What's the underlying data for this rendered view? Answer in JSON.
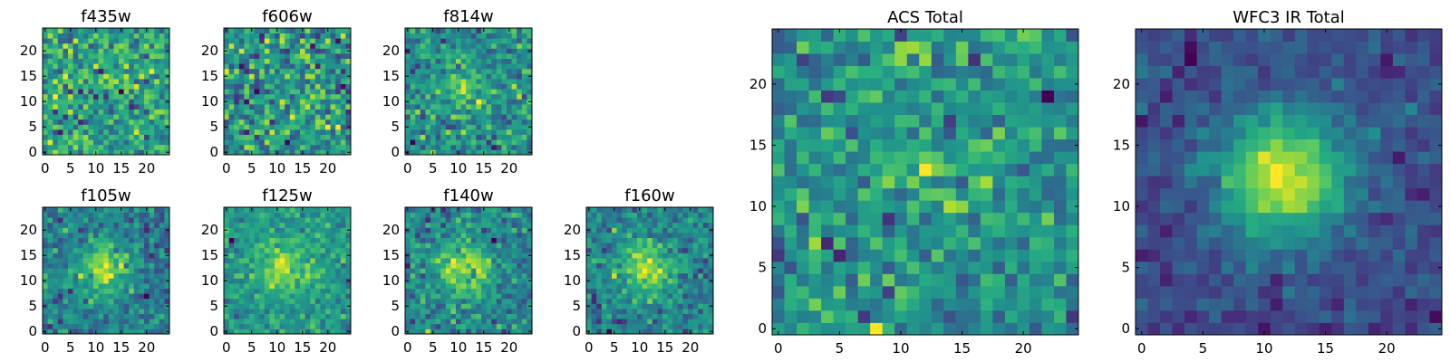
{
  "chart_data": [
    {
      "type": "heatmap",
      "title": "f435w",
      "xticks": [
        "0",
        "5",
        "10",
        "15",
        "20"
      ],
      "yticks": [
        "0",
        "5",
        "10",
        "15",
        "20"
      ],
      "xlim": [
        -0.5,
        24.5
      ],
      "ylim": [
        -0.5,
        24.5
      ],
      "grid": 25,
      "source_peak": 0.05,
      "noise_level": 1.0,
      "colormap": "viridis"
    },
    {
      "type": "heatmap",
      "title": "f606w",
      "xticks": [
        "0",
        "5",
        "10",
        "15",
        "20"
      ],
      "yticks": [
        "0",
        "5",
        "10",
        "15",
        "20"
      ],
      "xlim": [
        -0.5,
        24.5
      ],
      "ylim": [
        -0.5,
        24.5
      ],
      "grid": 25,
      "source_peak": 0.05,
      "noise_level": 1.0,
      "colormap": "viridis"
    },
    {
      "type": "heatmap",
      "title": "f814w",
      "xticks": [
        "0",
        "5",
        "10",
        "15",
        "20"
      ],
      "yticks": [
        "0",
        "5",
        "10",
        "15",
        "20"
      ],
      "xlim": [
        -0.5,
        24.5
      ],
      "ylim": [
        -0.5,
        24.5
      ],
      "grid": 25,
      "source_peak": 0.5,
      "noise_level": 0.8,
      "colormap": "viridis"
    },
    {
      "type": "heatmap",
      "title": "f105w",
      "xticks": [
        "0",
        "5",
        "10",
        "15",
        "20"
      ],
      "yticks": [
        "0",
        "5",
        "10",
        "15",
        "20"
      ],
      "xlim": [
        -0.5,
        24.5
      ],
      "ylim": [
        -0.5,
        24.5
      ],
      "grid": 25,
      "source_peak": 0.8,
      "noise_level": 0.6,
      "colormap": "viridis"
    },
    {
      "type": "heatmap",
      "title": "f125w",
      "xticks": [
        "0",
        "5",
        "10",
        "15",
        "20"
      ],
      "yticks": [
        "0",
        "5",
        "10",
        "15",
        "20"
      ],
      "xlim": [
        -0.5,
        24.5
      ],
      "ylim": [
        -0.5,
        24.5
      ],
      "grid": 25,
      "source_peak": 0.7,
      "noise_level": 0.6,
      "colormap": "viridis"
    },
    {
      "type": "heatmap",
      "title": "f140w",
      "xticks": [
        "0",
        "5",
        "10",
        "15",
        "20"
      ],
      "yticks": [
        "0",
        "5",
        "10",
        "15",
        "20"
      ],
      "xlim": [
        -0.5,
        24.5
      ],
      "ylim": [
        -0.5,
        24.5
      ],
      "grid": 25,
      "source_peak": 0.75,
      "noise_level": 0.6,
      "colormap": "viridis"
    },
    {
      "type": "heatmap",
      "title": "f160w",
      "xticks": [
        "0",
        "5",
        "10",
        "15",
        "20"
      ],
      "yticks": [
        "0",
        "5",
        "10",
        "15",
        "20"
      ],
      "xlim": [
        -0.5,
        24.5
      ],
      "ylim": [
        -0.5,
        24.5
      ],
      "grid": 25,
      "source_peak": 0.8,
      "noise_level": 0.6,
      "colormap": "viridis"
    },
    {
      "type": "heatmap",
      "title": "ACS Total",
      "xticks": [
        "0",
        "5",
        "10",
        "15",
        "20"
      ],
      "yticks": [
        "0",
        "5",
        "10",
        "15",
        "20"
      ],
      "xlim": [
        -0.5,
        24.5
      ],
      "ylim": [
        -0.5,
        24.5
      ],
      "grid": 25,
      "source_peak": 0.15,
      "noise_level": 0.7,
      "colormap": "viridis"
    },
    {
      "type": "heatmap",
      "title": "WFC3 IR Total",
      "xticks": [
        "0",
        "5",
        "10",
        "15",
        "20"
      ],
      "yticks": [
        "0",
        "5",
        "10",
        "15",
        "20"
      ],
      "xlim": [
        -0.5,
        24.5
      ],
      "ylim": [
        -0.5,
        24.5
      ],
      "grid": 25,
      "source_peak": 1.0,
      "noise_level": 0.25,
      "colormap": "viridis"
    }
  ]
}
